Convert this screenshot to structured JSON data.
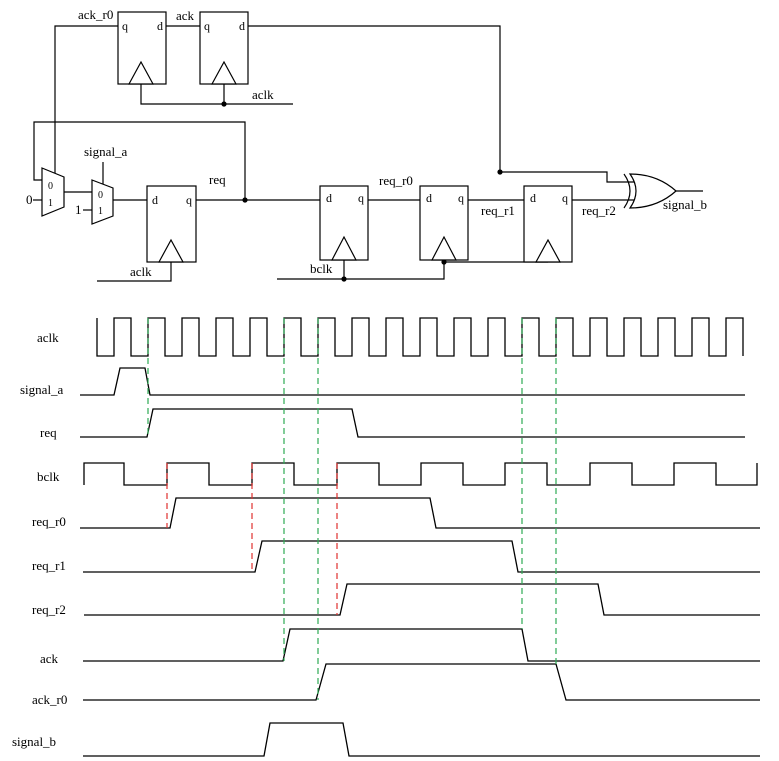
{
  "schematic": {
    "nets": {
      "ack_r0": "ack_r0",
      "ack": "ack",
      "aclk_top": "aclk",
      "signal_a": "signal_a",
      "req": "req",
      "aclk_bottom": "aclk",
      "req_r0": "req_r0",
      "req_r1": "req_r1",
      "req_r2": "req_r2",
      "signal_b": "signal_b",
      "bclk": "bclk"
    },
    "constants": {
      "zero": "0",
      "one": "1"
    },
    "flip_flop_pins": {
      "q": "q",
      "d": "d"
    },
    "mux_inputs": {
      "in0": "0",
      "in1": "1"
    }
  },
  "timing": {
    "signals": [
      "aclk",
      "signal_a",
      "req",
      "bclk",
      "req_r0",
      "req_r1",
      "req_r2",
      "ack",
      "ack_r0",
      "signal_b"
    ]
  },
  "colors": {
    "wire": "#000000",
    "aclk_edge_marker": "#2eaa55",
    "bclk_edge_marker": "#e0312f",
    "background": "#ffffff"
  }
}
